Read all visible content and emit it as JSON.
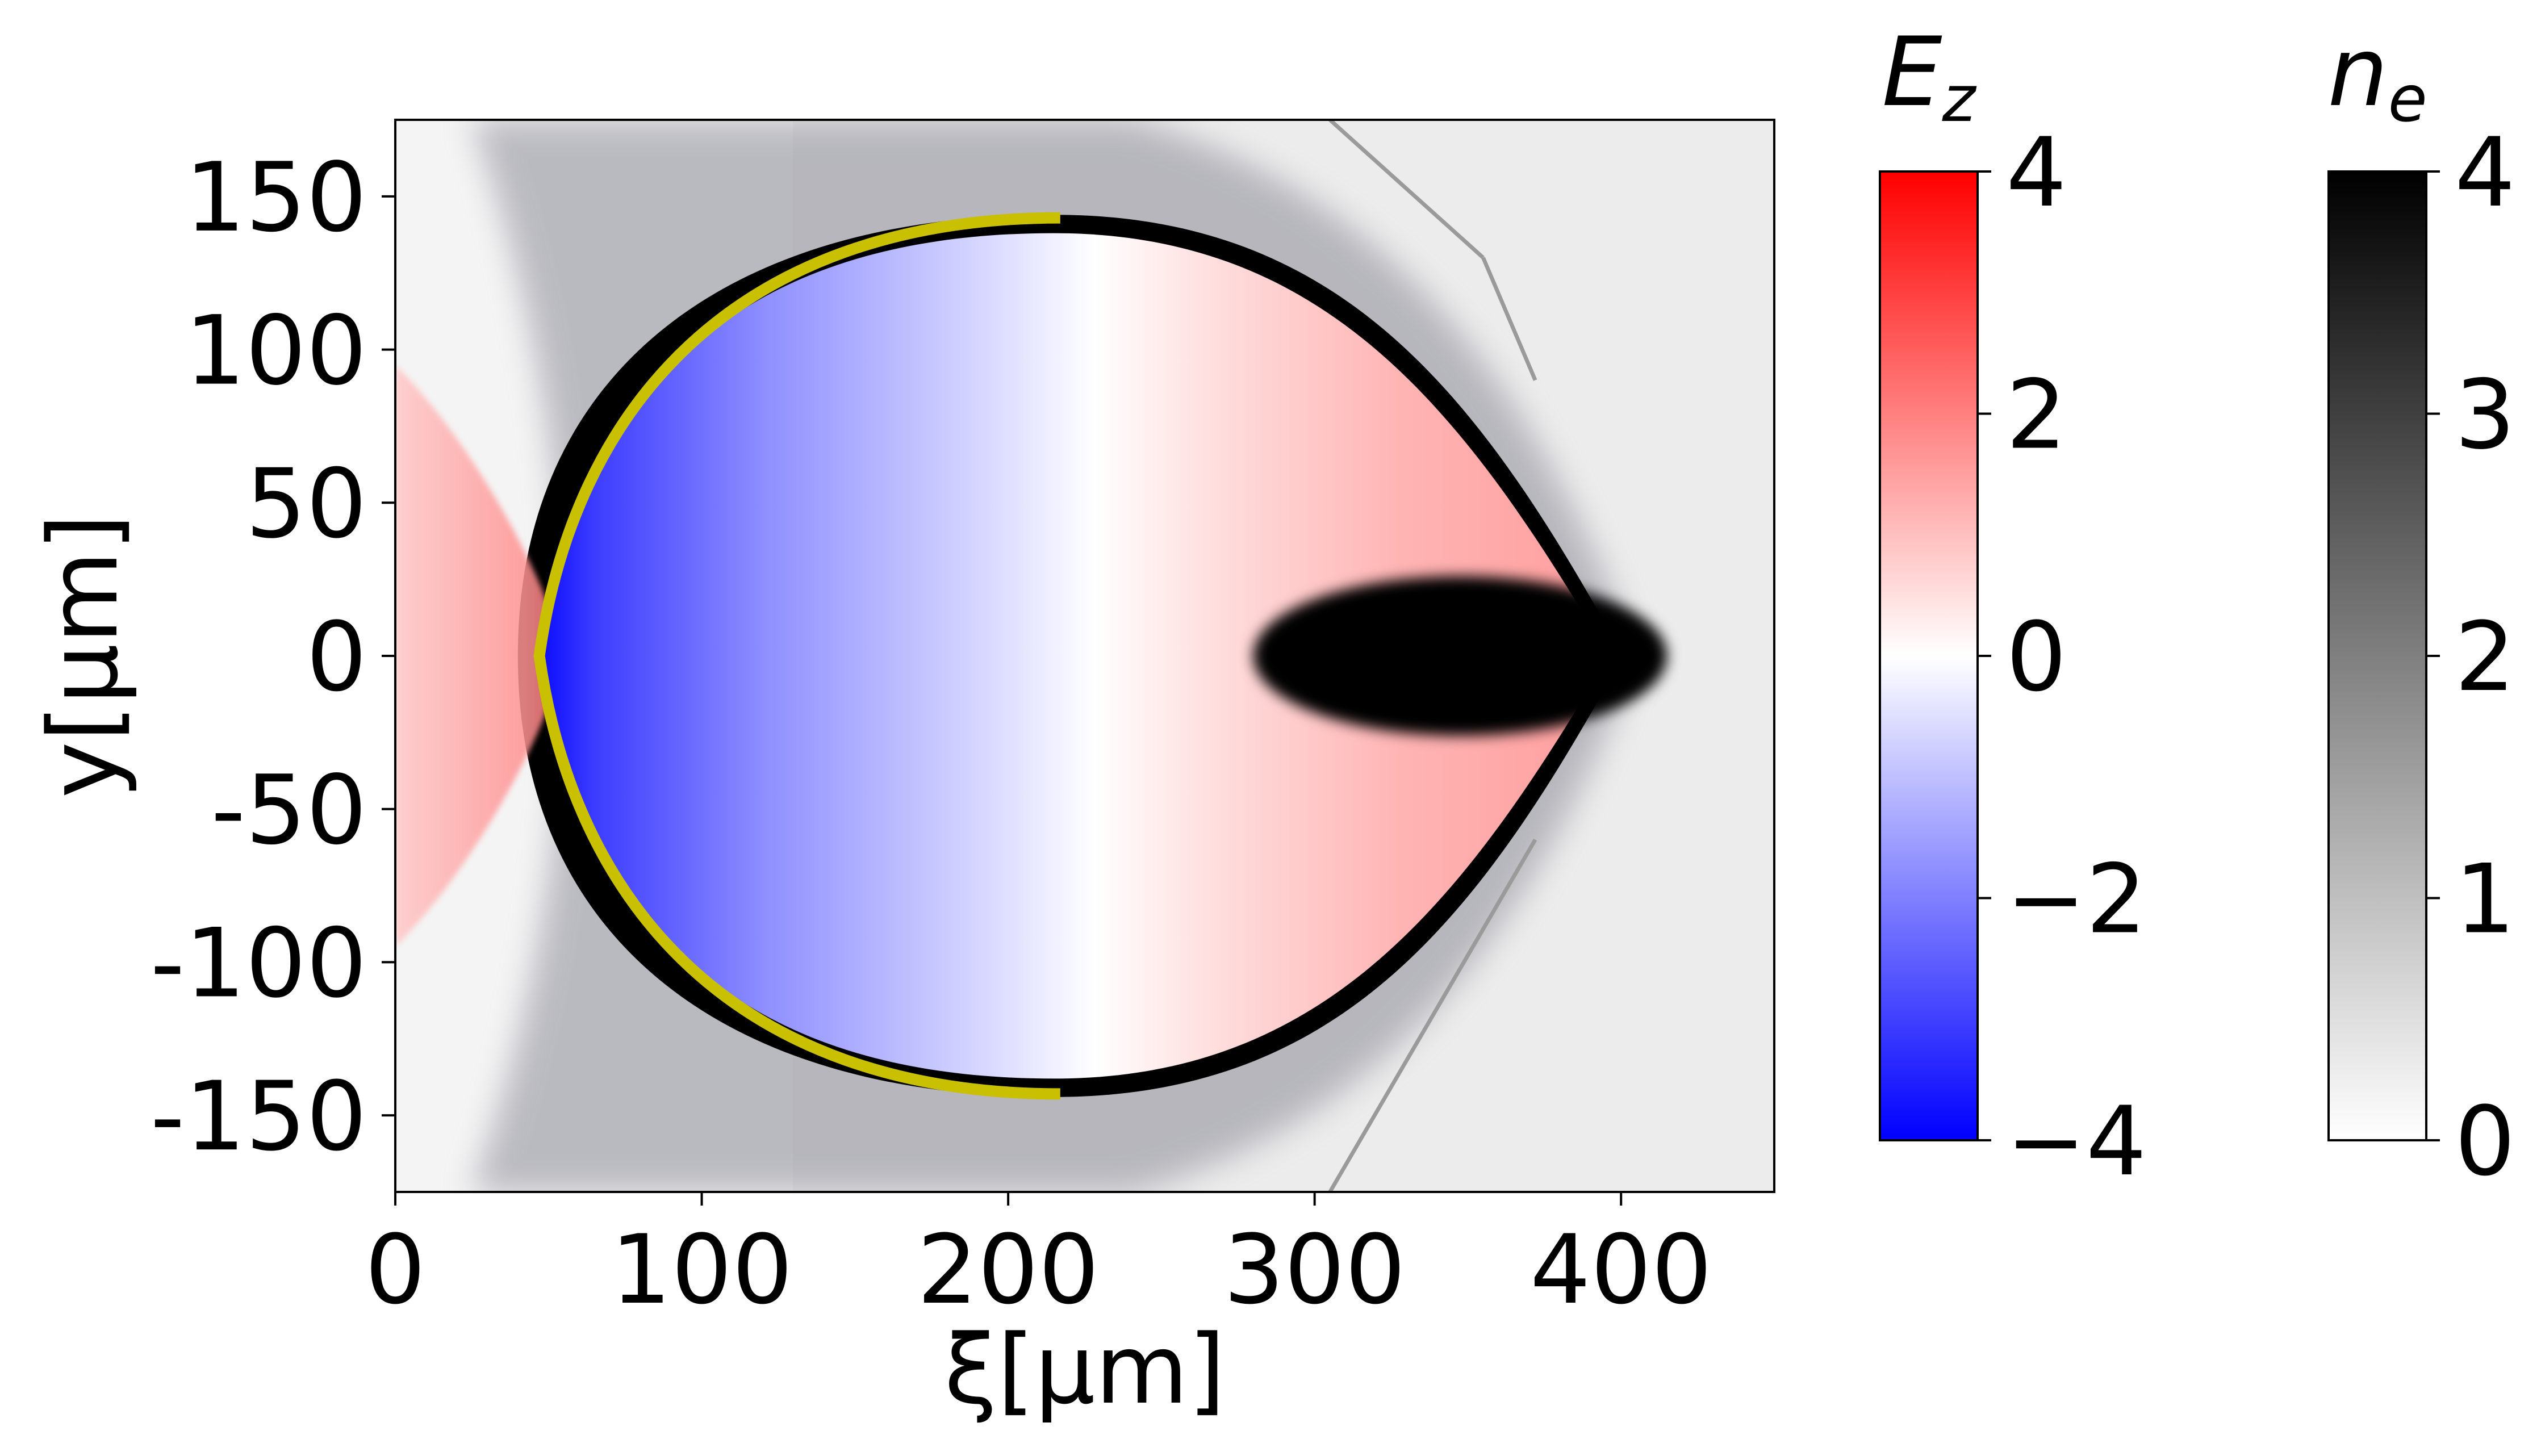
{
  "chart_data": {
    "type": "heatmap",
    "title": "",
    "xlabel": "ξ[μm]",
    "ylabel": "y[μm]",
    "xlim": [
      0,
      450
    ],
    "ylim": [
      -175,
      175
    ],
    "x_ticks": [
      0,
      100,
      200,
      300,
      400
    ],
    "x_tick_labels": [
      "0",
      "100",
      "200",
      "300",
      "400"
    ],
    "y_ticks": [
      150,
      100,
      50,
      0,
      -50,
      -100,
      -150
    ],
    "y_tick_labels": [
      "150",
      "100",
      "50",
      "0",
      "-50",
      "-100",
      "-150"
    ],
    "grid": false,
    "fields": {
      "Ez": {
        "label": "E",
        "label_subscript": "z",
        "colormap": "bwr",
        "range": [
          -4,
          4
        ],
        "ticks": [
          4,
          2,
          0,
          -2,
          -4
        ],
        "tick_labels": [
          "4",
          "2",
          "0",
          "−2",
          "−4"
        ],
        "color_max": "#ff0000",
        "color_mid": "#ffffff",
        "color_min": "#0000ff"
      },
      "ne": {
        "label": "n",
        "label_subscript": "e",
        "colormap": "gray_r",
        "range": [
          0,
          4
        ],
        "ticks": [
          4,
          3,
          2,
          1,
          0
        ],
        "tick_labels": [
          "4",
          "3",
          "2",
          "1",
          "0"
        ],
        "color_max": "#000000",
        "color_min": "#ffffff"
      }
    },
    "features": {
      "bubble": {
        "description": "plasma wake bubble",
        "rear_x": 47,
        "center_x": 215,
        "half_height": 138,
        "front_x": 390,
        "Ez_rear_min": -3.8,
        "Ez_front_max": 1.2
      },
      "electron_bunch": {
        "x_range": [
          280,
          415
        ],
        "y_range": [
          -26,
          26
        ],
        "ne": 4
      },
      "overlay_arc": {
        "color": "#c8c000",
        "x_range": [
          47,
          217
        ],
        "y_range": [
          -143,
          143
        ]
      },
      "laser_region": {
        "x_range": [
          0,
          55
        ],
        "y_range": [
          -95,
          95
        ],
        "Ez": 1.5
      }
    }
  }
}
